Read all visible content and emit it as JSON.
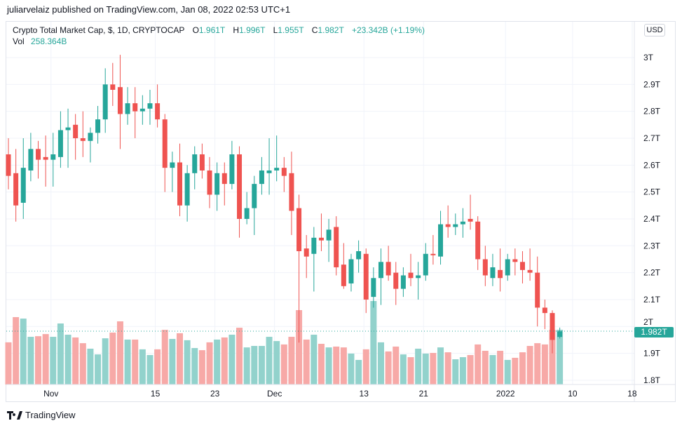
{
  "header": {
    "published": "juliarvelaiz published on TradingView.com, Jan 08, 2022 02:53 UTC+1"
  },
  "legend": {
    "symbol": "Crypto Total Market Cap, $, 1D, CRYPTOCAP",
    "o_label": "O",
    "o": "1.961T",
    "h_label": "H",
    "h": "1.996T",
    "l_label": "L",
    "l": "1.955T",
    "c_label": "C",
    "c": "1.982T",
    "change": "+23.342B (+1.19%)",
    "vol_label": "Vol",
    "vol": "258.364B"
  },
  "axis": {
    "currency": "USD",
    "last_price": "1.982T"
  },
  "brand": {
    "name": "TradingView"
  },
  "colors": {
    "up": "#26a69a",
    "down": "#ef5350",
    "up_vol": "#92d2cc",
    "down_vol": "#f7a9a7",
    "grid": "#f0f3fa"
  },
  "chart_data": {
    "type": "candlestick",
    "title": "Crypto Total Market Cap, $, 1D, CRYPTOCAP",
    "ylim": [
      1.8,
      3.0
    ],
    "y_ticks": [
      "3T",
      "2.9T",
      "2.8T",
      "2.7T",
      "2.6T",
      "2.5T",
      "2.4T",
      "2.3T",
      "2.2T",
      "2.1T",
      "2T",
      "1.9T",
      "1.8T"
    ],
    "y_tick_values": [
      3.0,
      2.9,
      2.8,
      2.7,
      2.6,
      2.5,
      2.4,
      2.3,
      2.2,
      2.1,
      2.0,
      1.9,
      1.8
    ],
    "x_ticks": [
      {
        "label": "Nov",
        "index": 6
      },
      {
        "label": "15",
        "index": 20
      },
      {
        "label": "23",
        "index": 28
      },
      {
        "label": "Dec",
        "index": 36
      },
      {
        "label": "13",
        "index": 48
      },
      {
        "label": "21",
        "index": 56
      },
      {
        "label": "2022",
        "index": 67
      },
      {
        "label": "10",
        "index": 76
      },
      {
        "label": "18",
        "index": 84
      }
    ],
    "first_date": "2021-10-26",
    "ohlc": [
      [
        2.64,
        2.7,
        2.51,
        2.56
      ],
      [
        2.57,
        2.66,
        2.39,
        2.45
      ],
      [
        2.46,
        2.7,
        2.4,
        2.59
      ],
      [
        2.58,
        2.72,
        2.54,
        2.66
      ],
      [
        2.66,
        2.69,
        2.55,
        2.62
      ],
      [
        2.63,
        2.71,
        2.52,
        2.62
      ],
      [
        2.62,
        2.72,
        2.52,
        2.64
      ],
      [
        2.63,
        2.8,
        2.59,
        2.73
      ],
      [
        2.73,
        2.81,
        2.59,
        2.74
      ],
      [
        2.75,
        2.79,
        2.62,
        2.7
      ],
      [
        2.7,
        2.8,
        2.63,
        2.69
      ],
      [
        2.69,
        2.74,
        2.61,
        2.72
      ],
      [
        2.72,
        2.82,
        2.68,
        2.77
      ],
      [
        2.77,
        2.96,
        2.72,
        2.9
      ],
      [
        2.9,
        2.98,
        2.82,
        2.88
      ],
      [
        2.89,
        3.01,
        2.66,
        2.79
      ],
      [
        2.79,
        2.89,
        2.75,
        2.83
      ],
      [
        2.83,
        2.89,
        2.7,
        2.8
      ],
      [
        2.8,
        2.86,
        2.75,
        2.81
      ],
      [
        2.81,
        2.88,
        2.75,
        2.83
      ],
      [
        2.83,
        2.9,
        2.74,
        2.77
      ],
      [
        2.77,
        2.79,
        2.5,
        2.59
      ],
      [
        2.59,
        2.65,
        2.5,
        2.61
      ],
      [
        2.61,
        2.68,
        2.41,
        2.45
      ],
      [
        2.45,
        2.6,
        2.39,
        2.57
      ],
      [
        2.57,
        2.67,
        2.51,
        2.64
      ],
      [
        2.64,
        2.68,
        2.55,
        2.58
      ],
      [
        2.58,
        2.63,
        2.44,
        2.49
      ],
      [
        2.49,
        2.61,
        2.43,
        2.57
      ],
      [
        2.57,
        2.61,
        2.45,
        2.53
      ],
      [
        2.53,
        2.69,
        2.51,
        2.64
      ],
      [
        2.64,
        2.67,
        2.33,
        2.4
      ],
      [
        2.4,
        2.5,
        2.38,
        2.44
      ],
      [
        2.44,
        2.56,
        2.34,
        2.53
      ],
      [
        2.53,
        2.63,
        2.49,
        2.58
      ],
      [
        2.57,
        2.7,
        2.49,
        2.58
      ],
      [
        2.58,
        2.71,
        2.54,
        2.59
      ],
      [
        2.59,
        2.63,
        2.5,
        2.56
      ],
      [
        2.57,
        2.65,
        2.34,
        2.43
      ],
      [
        2.44,
        2.49,
        1.94,
        2.28
      ],
      [
        2.29,
        2.34,
        2.18,
        2.26
      ],
      [
        2.27,
        2.37,
        2.13,
        2.33
      ],
      [
        2.33,
        2.42,
        2.28,
        2.32
      ],
      [
        2.32,
        2.4,
        2.24,
        2.36
      ],
      [
        2.37,
        2.41,
        2.19,
        2.22
      ],
      [
        2.23,
        2.31,
        2.14,
        2.15
      ],
      [
        2.16,
        2.27,
        2.13,
        2.25
      ],
      [
        2.25,
        2.32,
        2.2,
        2.28
      ],
      [
        2.27,
        2.29,
        2.05,
        2.1
      ],
      [
        2.11,
        2.22,
        2.07,
        2.18
      ],
      [
        2.18,
        2.29,
        2.08,
        2.24
      ],
      [
        2.24,
        2.3,
        2.17,
        2.19
      ],
      [
        2.2,
        2.24,
        2.08,
        2.14
      ],
      [
        2.14,
        2.22,
        2.11,
        2.19
      ],
      [
        2.2,
        2.27,
        2.15,
        2.18
      ],
      [
        2.18,
        2.24,
        2.1,
        2.19
      ],
      [
        2.19,
        2.31,
        2.17,
        2.27
      ],
      [
        2.27,
        2.34,
        2.23,
        2.265
      ],
      [
        2.26,
        2.43,
        2.23,
        2.38
      ],
      [
        2.38,
        2.45,
        2.33,
        2.37
      ],
      [
        2.37,
        2.42,
        2.34,
        2.38
      ],
      [
        2.38,
        2.44,
        2.33,
        2.39
      ],
      [
        2.4,
        2.49,
        2.36,
        2.39
      ],
      [
        2.39,
        2.41,
        2.21,
        2.25
      ],
      [
        2.25,
        2.3,
        2.15,
        2.19
      ],
      [
        2.18,
        2.27,
        2.15,
        2.22
      ],
      [
        2.21,
        2.29,
        2.13,
        2.18
      ],
      [
        2.19,
        2.27,
        2.17,
        2.25
      ],
      [
        2.25,
        2.29,
        2.19,
        2.24
      ],
      [
        2.24,
        2.28,
        2.16,
        2.21
      ],
      [
        2.21,
        2.29,
        2.17,
        2.2
      ],
      [
        2.2,
        2.26,
        2.0,
        2.07
      ],
      [
        2.07,
        2.1,
        1.99,
        2.05
      ],
      [
        2.05,
        2.06,
        1.9,
        1.95
      ],
      [
        1.961,
        1.996,
        1.955,
        1.982
      ]
    ],
    "volume_b": [
      199,
      318,
      311,
      225,
      228,
      238,
      225,
      288,
      235,
      222,
      195,
      169,
      142,
      218,
      245,
      298,
      212,
      212,
      166,
      139,
      166,
      258,
      215,
      242,
      209,
      172,
      162,
      199,
      212,
      222,
      235,
      268,
      175,
      182,
      182,
      225,
      205,
      189,
      225,
      351,
      212,
      235,
      192,
      175,
      179,
      175,
      146,
      116,
      166,
      394,
      199,
      156,
      179,
      142,
      129,
      169,
      146,
      149,
      175,
      152,
      119,
      129,
      139,
      189,
      159,
      139,
      159,
      116,
      126,
      152,
      182,
      195,
      189,
      258,
      258.364
    ]
  }
}
